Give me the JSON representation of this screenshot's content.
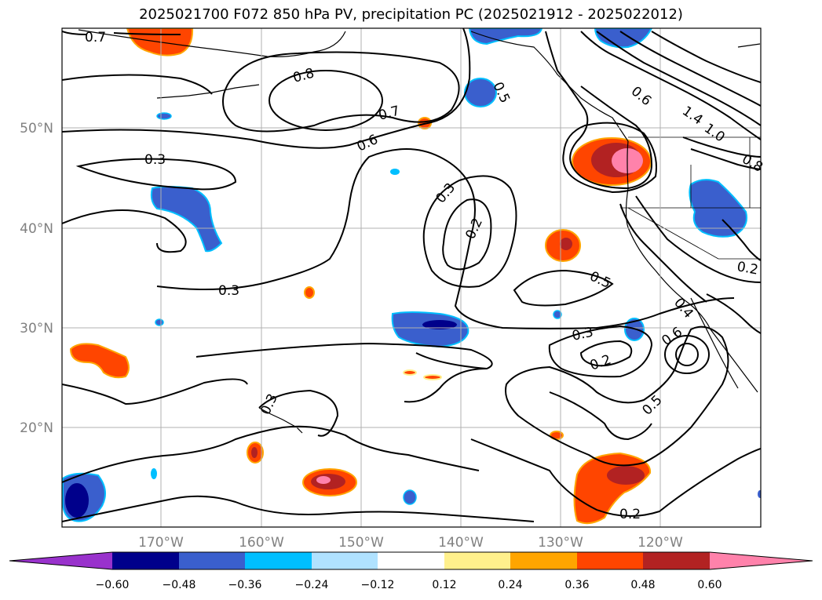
{
  "title": "2025021700 F072 850 hPa PV, precipitation PC (2025021912 - 2025022012)",
  "lat_labels": [
    "50°N",
    "40°N",
    "30°N",
    "20°N"
  ],
  "lon_labels": [
    "170°W",
    "160°W",
    "150°W",
    "140°W",
    "130°W",
    "120°W"
  ],
  "contour_labels": [
    "0.7",
    "0.8",
    "0.7",
    "0.6",
    "0.3",
    "0.5",
    "0.6",
    "1.4",
    "1.0",
    "0.8",
    "0.3",
    "0.2",
    "0.5",
    "0.3",
    "0.2",
    "0.4",
    "0.2",
    "0.3",
    "0.3",
    "0.6",
    "0.5",
    "0.2"
  ],
  "colorbar": {
    "colors": [
      "#9932cc",
      "#00008b",
      "#3a5fcd",
      "#00bfff",
      "#b0e2ff",
      "#ffffff",
      "#fff08c",
      "#ffa500",
      "#ff4500",
      "#b22222",
      "#ff82ab"
    ],
    "tick_labels": [
      "−0.60",
      "−0.48",
      "−0.36",
      "−0.24",
      "−0.12",
      "0.12",
      "0.24",
      "0.36",
      "0.48",
      "0.60"
    ]
  }
}
